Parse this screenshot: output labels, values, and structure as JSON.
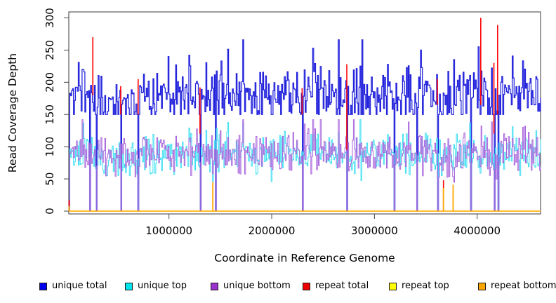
{
  "chart_data": {
    "type": "line",
    "title": "",
    "xlabel": "Coordinate in Reference Genome",
    "ylabel": "Read Coverage Depth",
    "xlim": [
      25000,
      4617000
    ],
    "ylim": [
      0,
      300
    ],
    "xticks": [
      1000000,
      2000000,
      3000000,
      4000000
    ],
    "yticks": [
      0,
      50,
      100,
      150,
      200,
      250,
      300
    ],
    "grid": false,
    "legend_position": "bottom",
    "frame_color": "#4a4a4a",
    "npts": 500,
    "series": [
      {
        "name": "unique total",
        "color": "#0000EE",
        "line_color": "#2222DC",
        "baseline_mean": 177,
        "baseline_range": [
          150,
          240
        ],
        "peaks_to": 270,
        "description": "noisy step band ~155-235 with occasional spikes to ~270 and sharp single-point drops to 0"
      },
      {
        "name": "unique top",
        "color": "#00E5EE",
        "line_color": "#3CDFF2",
        "baseline_mean": 88,
        "baseline_range": [
          50,
          140
        ],
        "description": "noisy step band ~65-115 with occasional spikes to ~140"
      },
      {
        "name": "unique bottom",
        "color": "#9932CC",
        "line_color": "#A864DC",
        "baseline_mean": 89,
        "baseline_range": [
          50,
          140
        ],
        "description": "noisy step band ~65-115 with occasional spikes to ~140"
      },
      {
        "name": "repeat total",
        "color": "#EE0000",
        "line_color": "#FF0000",
        "baseline_mean": 0,
        "description": "zero baseline with isolated tall spikes (see events.repeat_total_spikes)"
      },
      {
        "name": "repeat top",
        "color": "#FFFF00",
        "line_color": "#FFFF00",
        "baseline_mean": 0,
        "description": "flat zero baseline, hidden under repeat bottom"
      },
      {
        "name": "repeat bottom",
        "color": "#FFA500",
        "line_color": "#FFA500",
        "baseline_mean": 0,
        "description": "zero baseline drawn along y=0 with a few small spikes"
      }
    ],
    "events": {
      "zero_coverage_drops_x": [
        230000,
        293000,
        527000,
        700000,
        1302000,
        1448000,
        2296000,
        2731000,
        3190000,
        3416000,
        3612000,
        3940000,
        4163000,
        4199000
      ],
      "unique_total_spikes": [
        {
          "x": 120000,
          "v": 231
        },
        {
          "x": 990000,
          "v": 240
        },
        {
          "x": 1510000,
          "v": 233
        },
        {
          "x": 2878000,
          "v": 266
        },
        {
          "x": 3447000,
          "v": 250
        },
        {
          "x": 4013000,
          "v": 255
        }
      ],
      "partial_dips": [
        {
          "x": 1427000,
          "top": 46,
          "bottom": 58
        },
        {
          "x": 3766000,
          "bottom": 45
        }
      ],
      "repeat_total_spikes": [
        {
          "x": 28000,
          "v1": 0,
          "v2": 17
        },
        {
          "x": 259000,
          "v1": 180,
          "v2": 270
        },
        {
          "x": 530000,
          "v1": 150,
          "v2": 194
        },
        {
          "x": 700000,
          "v1": 150,
          "v2": 205
        },
        {
          "x": 1302000,
          "v1": 120,
          "v2": 192
        },
        {
          "x": 2296000,
          "v1": 150,
          "v2": 191
        },
        {
          "x": 2731000,
          "v1": 95,
          "v2": 228
        },
        {
          "x": 3612000,
          "v1": 165,
          "v2": 205
        },
        {
          "x": 3672000,
          "v1": 0,
          "v2": 48
        },
        {
          "x": 4035000,
          "v1": 165,
          "v2": 300
        },
        {
          "x": 4163000,
          "v1": 120,
          "v2": 230
        },
        {
          "x": 4199000,
          "v1": 150,
          "v2": 289
        }
      ],
      "repeat_bottom_spikes": [
        {
          "x": 28000,
          "v": 8
        },
        {
          "x": 1427000,
          "v": 45
        },
        {
          "x": 3672000,
          "v": 36
        },
        {
          "x": 3766000,
          "v": 41
        }
      ]
    }
  }
}
